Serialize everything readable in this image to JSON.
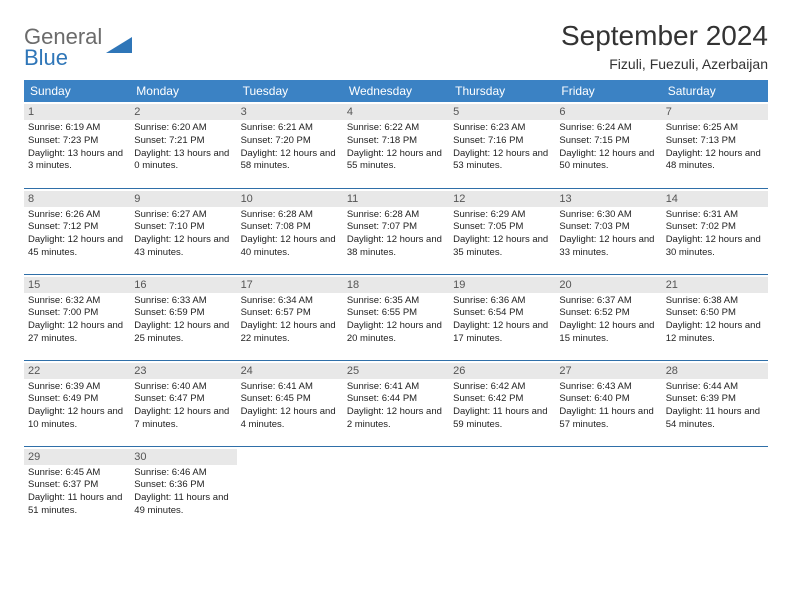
{
  "logo": {
    "line1": "General",
    "line2": "Blue"
  },
  "title": "September 2024",
  "location": "Fizuli, Fuezuli, Azerbaijan",
  "header_bg": "#3b82c4",
  "header_text_color": "#ffffff",
  "divider_color": "#2f6fa8",
  "daynum_bg": "#e8e8e8",
  "columns": [
    "Sunday",
    "Monday",
    "Tuesday",
    "Wednesday",
    "Thursday",
    "Friday",
    "Saturday"
  ],
  "weeks": [
    [
      {
        "n": "1",
        "sr": "6:19 AM",
        "ss": "7:23 PM",
        "dl": "13 hours and 3 minutes."
      },
      {
        "n": "2",
        "sr": "6:20 AM",
        "ss": "7:21 PM",
        "dl": "13 hours and 0 minutes."
      },
      {
        "n": "3",
        "sr": "6:21 AM",
        "ss": "7:20 PM",
        "dl": "12 hours and 58 minutes."
      },
      {
        "n": "4",
        "sr": "6:22 AM",
        "ss": "7:18 PM",
        "dl": "12 hours and 55 minutes."
      },
      {
        "n": "5",
        "sr": "6:23 AM",
        "ss": "7:16 PM",
        "dl": "12 hours and 53 minutes."
      },
      {
        "n": "6",
        "sr": "6:24 AM",
        "ss": "7:15 PM",
        "dl": "12 hours and 50 minutes."
      },
      {
        "n": "7",
        "sr": "6:25 AM",
        "ss": "7:13 PM",
        "dl": "12 hours and 48 minutes."
      }
    ],
    [
      {
        "n": "8",
        "sr": "6:26 AM",
        "ss": "7:12 PM",
        "dl": "12 hours and 45 minutes."
      },
      {
        "n": "9",
        "sr": "6:27 AM",
        "ss": "7:10 PM",
        "dl": "12 hours and 43 minutes."
      },
      {
        "n": "10",
        "sr": "6:28 AM",
        "ss": "7:08 PM",
        "dl": "12 hours and 40 minutes."
      },
      {
        "n": "11",
        "sr": "6:28 AM",
        "ss": "7:07 PM",
        "dl": "12 hours and 38 minutes."
      },
      {
        "n": "12",
        "sr": "6:29 AM",
        "ss": "7:05 PM",
        "dl": "12 hours and 35 minutes."
      },
      {
        "n": "13",
        "sr": "6:30 AM",
        "ss": "7:03 PM",
        "dl": "12 hours and 33 minutes."
      },
      {
        "n": "14",
        "sr": "6:31 AM",
        "ss": "7:02 PM",
        "dl": "12 hours and 30 minutes."
      }
    ],
    [
      {
        "n": "15",
        "sr": "6:32 AM",
        "ss": "7:00 PM",
        "dl": "12 hours and 27 minutes."
      },
      {
        "n": "16",
        "sr": "6:33 AM",
        "ss": "6:59 PM",
        "dl": "12 hours and 25 minutes."
      },
      {
        "n": "17",
        "sr": "6:34 AM",
        "ss": "6:57 PM",
        "dl": "12 hours and 22 minutes."
      },
      {
        "n": "18",
        "sr": "6:35 AM",
        "ss": "6:55 PM",
        "dl": "12 hours and 20 minutes."
      },
      {
        "n": "19",
        "sr": "6:36 AM",
        "ss": "6:54 PM",
        "dl": "12 hours and 17 minutes."
      },
      {
        "n": "20",
        "sr": "6:37 AM",
        "ss": "6:52 PM",
        "dl": "12 hours and 15 minutes."
      },
      {
        "n": "21",
        "sr": "6:38 AM",
        "ss": "6:50 PM",
        "dl": "12 hours and 12 minutes."
      }
    ],
    [
      {
        "n": "22",
        "sr": "6:39 AM",
        "ss": "6:49 PM",
        "dl": "12 hours and 10 minutes."
      },
      {
        "n": "23",
        "sr": "6:40 AM",
        "ss": "6:47 PM",
        "dl": "12 hours and 7 minutes."
      },
      {
        "n": "24",
        "sr": "6:41 AM",
        "ss": "6:45 PM",
        "dl": "12 hours and 4 minutes."
      },
      {
        "n": "25",
        "sr": "6:41 AM",
        "ss": "6:44 PM",
        "dl": "12 hours and 2 minutes."
      },
      {
        "n": "26",
        "sr": "6:42 AM",
        "ss": "6:42 PM",
        "dl": "11 hours and 59 minutes."
      },
      {
        "n": "27",
        "sr": "6:43 AM",
        "ss": "6:40 PM",
        "dl": "11 hours and 57 minutes."
      },
      {
        "n": "28",
        "sr": "6:44 AM",
        "ss": "6:39 PM",
        "dl": "11 hours and 54 minutes."
      }
    ],
    [
      {
        "n": "29",
        "sr": "6:45 AM",
        "ss": "6:37 PM",
        "dl": "11 hours and 51 minutes."
      },
      {
        "n": "30",
        "sr": "6:46 AM",
        "ss": "6:36 PM",
        "dl": "11 hours and 49 minutes."
      },
      null,
      null,
      null,
      null,
      null
    ]
  ],
  "labels": {
    "sunrise": "Sunrise:",
    "sunset": "Sunset:",
    "daylight": "Daylight:"
  }
}
